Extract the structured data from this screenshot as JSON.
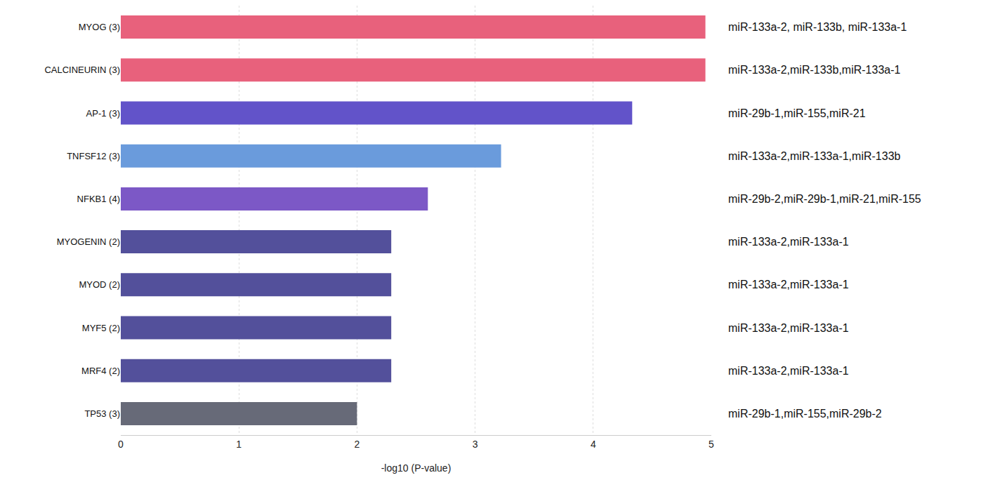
{
  "chart_data": {
    "type": "bar",
    "orientation": "horizontal",
    "categories": [
      "MYOG (3)",
      "CALCINEURIN (3)",
      "AP-1 (3)",
      "TNFSF12 (3)",
      "NFKB1 (4)",
      "MYOGENIN (2)",
      "MYOD (2)",
      "MYF5 (2)",
      "MRF4 (2)",
      "TP53 (3)"
    ],
    "values": [
      4.95,
      4.95,
      4.33,
      3.22,
      2.6,
      2.29,
      2.29,
      2.29,
      2.29,
      2.0
    ],
    "colors": [
      "#e8617c",
      "#e8617c",
      "#6253c9",
      "#6a9bdc",
      "#7c58c6",
      "#53509b",
      "#53509b",
      "#53509b",
      "#53509b",
      "#676a78"
    ],
    "annotations": [
      "miR-133a-2, miR-133b, miR-133a-1",
      "miR-133a-2,miR-133b,miR-133a-1",
      "miR-29b-1,miR-155,miR-21",
      "miR-133a-2,miR-133a-1,miR-133b",
      "miR-29b-2,miR-29b-1,miR-21,miR-155",
      "miR-133a-2,miR-133a-1",
      "miR-133a-2,miR-133a-1",
      "miR-133a-2,miR-133a-1",
      "miR-133a-2,miR-133a-1",
      "miR-29b-1,miR-155,miR-29b-2"
    ],
    "x_label": "-log10 (P-value)",
    "xlim": [
      0,
      5
    ],
    "xticks": [
      0,
      1,
      2,
      3,
      4,
      5
    ],
    "grid": true
  }
}
